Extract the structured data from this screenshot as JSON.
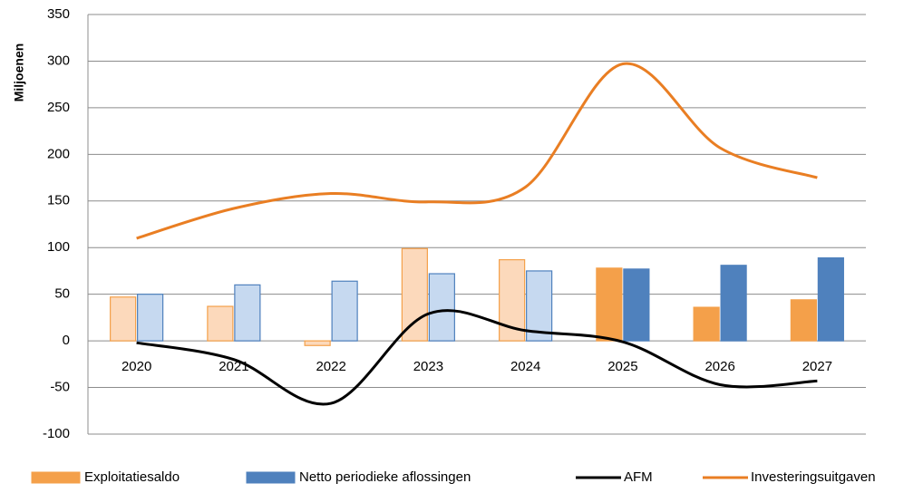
{
  "chart_data": {
    "type": "bar-line",
    "y_label": "Miljoenen",
    "categories": [
      "2020",
      "2021",
      "2022",
      "2023",
      "2024",
      "2025",
      "2026",
      "2027"
    ],
    "series": [
      {
        "name": "Exploitatiesaldo",
        "type": "bar",
        "color": "#f4a04a",
        "colors": [
          "#fcd9bb",
          "#fcd9bb",
          "#fcd9bb",
          "#fcd9bb",
          "#fcd9bb",
          "#f4a04a",
          "#f4a04a",
          "#f4a04a"
        ],
        "values": [
          47,
          37,
          -5,
          99,
          87,
          78,
          36,
          44
        ]
      },
      {
        "name": "Netto periodieke aflossingen",
        "type": "bar",
        "color": "#4f81bd",
        "colors": [
          "#c6d9f0",
          "#c6d9f0",
          "#c6d9f0",
          "#c6d9f0",
          "#c6d9f0",
          "#4f81bd",
          "#4f81bd",
          "#4f81bd"
        ],
        "values": [
          50,
          60,
          64,
          72,
          75,
          77,
          81,
          89
        ]
      },
      {
        "name": "AFM",
        "type": "line",
        "color": "#000000",
        "values": [
          -2,
          -20,
          -67,
          29,
          11,
          -1,
          -47,
          -43
        ]
      },
      {
        "name": "Investeringsuitgaven",
        "type": "line",
        "color": "#e97e23",
        "values": [
          110,
          142,
          158,
          149,
          165,
          297,
          207,
          175
        ]
      }
    ],
    "ylim": [
      -100,
      350
    ],
    "yticks": [
      -100,
      -50,
      0,
      50,
      100,
      150,
      200,
      250,
      300,
      350
    ],
    "grid": true,
    "legend": "bottom"
  }
}
